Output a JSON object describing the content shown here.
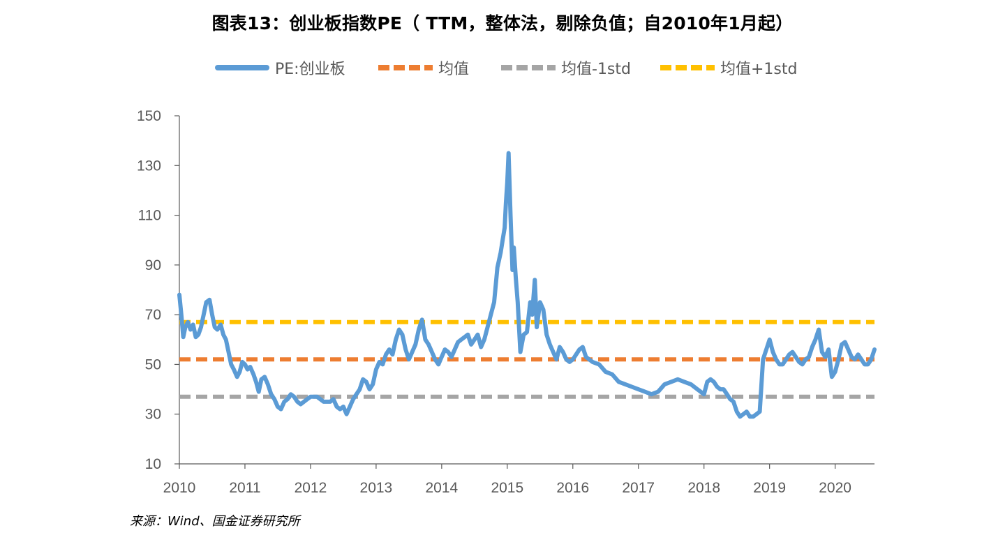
{
  "title": "图表13：创业板指数PE（ TTM，整体法，剔除负值；自2010年1月起）",
  "source": "来源：Wind、国金证券研究所",
  "colors": {
    "pe": "#5B9BD5",
    "mean": "#ED7D31",
    "minus_std": "#A5A5A5",
    "plus_std": "#FFC000",
    "axis": "#595959"
  },
  "legend": [
    {
      "key": "pe",
      "label": "PE:创业板",
      "style": "solid",
      "color": "#5B9BD5"
    },
    {
      "key": "mean",
      "label": "均值",
      "style": "dashed",
      "color": "#ED7D31"
    },
    {
      "key": "minus_std",
      "label": "均值-1std",
      "style": "dashed",
      "color": "#A5A5A5"
    },
    {
      "key": "plus_std",
      "label": "均值+1std",
      "style": "dashed",
      "color": "#FFC000"
    }
  ],
  "chart_data": {
    "type": "line",
    "title": "图表13：创业板指数PE（ TTM，整体法，剔除负值；自2010年1月起）",
    "xlabel": "",
    "ylabel": "",
    "xlim": [
      2010,
      2020.6
    ],
    "ylim": [
      10,
      150
    ],
    "yticks": [
      10,
      30,
      50,
      70,
      90,
      110,
      130,
      150
    ],
    "xticks": [
      2010,
      2011,
      2012,
      2013,
      2014,
      2015,
      2016,
      2017,
      2018,
      2019,
      2020
    ],
    "grid": false,
    "legend_position": "top",
    "series": [
      {
        "name": "PE:创业板",
        "style": "solid",
        "x": [
          2010.0,
          2010.03,
          2010.06,
          2010.09,
          2010.13,
          2010.17,
          2010.21,
          2010.25,
          2010.29,
          2010.33,
          2010.37,
          2010.41,
          2010.46,
          2010.5,
          2010.54,
          2010.58,
          2010.63,
          2010.67,
          2010.71,
          2010.75,
          2010.79,
          2010.83,
          2010.88,
          2010.92,
          2010.96,
          2011.0,
          2011.04,
          2011.08,
          2011.13,
          2011.17,
          2011.21,
          2011.25,
          2011.3,
          2011.35,
          2011.4,
          2011.45,
          2011.5,
          2011.55,
          2011.6,
          2011.65,
          2011.7,
          2011.75,
          2011.8,
          2011.85,
          2011.9,
          2011.95,
          2012.0,
          2012.1,
          2012.2,
          2012.3,
          2012.35,
          2012.4,
          2012.45,
          2012.5,
          2012.55,
          2012.6,
          2012.65,
          2012.7,
          2012.75,
          2012.8,
          2012.85,
          2012.9,
          2012.95,
          2013.0,
          2013.05,
          2013.1,
          2013.15,
          2013.2,
          2013.25,
          2013.3,
          2013.35,
          2013.4,
          2013.45,
          2013.5,
          2013.55,
          2013.6,
          2013.65,
          2013.7,
          2013.75,
          2013.8,
          2013.85,
          2013.9,
          2013.95,
          2014.0,
          2014.05,
          2014.1,
          2014.15,
          2014.2,
          2014.25,
          2014.3,
          2014.35,
          2014.4,
          2014.45,
          2014.5,
          2014.55,
          2014.6,
          2014.65,
          2014.7,
          2014.75,
          2014.8,
          2014.85,
          2014.9,
          2014.93,
          2014.96,
          2014.98,
          2015.0,
          2015.02,
          2015.05,
          2015.08,
          2015.1,
          2015.13,
          2015.16,
          2015.2,
          2015.25,
          2015.3,
          2015.35,
          2015.38,
          2015.42,
          2015.45,
          2015.5,
          2015.55,
          2015.6,
          2015.65,
          2015.7,
          2015.75,
          2015.8,
          2015.85,
          2015.9,
          2015.95,
          2016.0,
          2016.05,
          2016.1,
          2016.15,
          2016.2,
          2016.3,
          2016.4,
          2016.5,
          2016.6,
          2016.7,
          2016.8,
          2016.9,
          2017.0,
          2017.1,
          2017.2,
          2017.3,
          2017.4,
          2017.5,
          2017.6,
          2017.7,
          2017.8,
          2017.9,
          2018.0,
          2018.05,
          2018.1,
          2018.15,
          2018.2,
          2018.25,
          2018.3,
          2018.35,
          2018.4,
          2018.45,
          2018.5,
          2018.55,
          2018.6,
          2018.65,
          2018.7,
          2018.75,
          2018.8,
          2018.85,
          2018.9,
          2018.95,
          2019.0,
          2019.05,
          2019.1,
          2019.15,
          2019.2,
          2019.25,
          2019.3,
          2019.35,
          2019.4,
          2019.45,
          2019.5,
          2019.55,
          2019.6,
          2019.65,
          2019.7,
          2019.75,
          2019.8,
          2019.85,
          2019.9,
          2019.95,
          2020.0,
          2020.05,
          2020.1,
          2020.15,
          2020.2,
          2020.25,
          2020.3,
          2020.35,
          2020.4,
          2020.45,
          2020.5,
          2020.55,
          2020.6
        ],
        "y": [
          78,
          70,
          61,
          65,
          67,
          64,
          66,
          61,
          62,
          65,
          70,
          75,
          76,
          70,
          65,
          64,
          66,
          62,
          60,
          55,
          50,
          48,
          45,
          47,
          51,
          50,
          48,
          49,
          46,
          43,
          39,
          44,
          45,
          42,
          38,
          36,
          33,
          32,
          35,
          36,
          38,
          37,
          35,
          34,
          35,
          36,
          37,
          37,
          35,
          35,
          36,
          33,
          32,
          33,
          30,
          33,
          36,
          38,
          40,
          44,
          43,
          40,
          42,
          48,
          51,
          50,
          54,
          56,
          54,
          60,
          64,
          62,
          56,
          52,
          55,
          58,
          64,
          68,
          60,
          58,
          55,
          52,
          50,
          53,
          56,
          55,
          53,
          56,
          59,
          60,
          61,
          62,
          58,
          60,
          62,
          57,
          60,
          65,
          70,
          75,
          89,
          95,
          100,
          105,
          115,
          123,
          135,
          110,
          88,
          97,
          85,
          75,
          55,
          62,
          63,
          75,
          70,
          84,
          65,
          75,
          72,
          62,
          58,
          55,
          52,
          57,
          55,
          52,
          51,
          52,
          54,
          56,
          57,
          53,
          51,
          50,
          47,
          46,
          43,
          42,
          41,
          40,
          39,
          38,
          39,
          42,
          43,
          44,
          43,
          42,
          40,
          38,
          43,
          44,
          43,
          41,
          40,
          40,
          38,
          36,
          35,
          31,
          29,
          30,
          31,
          29,
          29,
          30,
          31,
          52,
          56,
          60,
          55,
          52,
          50,
          50,
          52,
          54,
          55,
          53,
          51,
          50,
          52,
          53,
          57,
          60,
          64,
          55,
          53,
          56,
          45,
          47,
          52,
          58,
          59,
          56,
          53,
          52,
          54,
          52,
          50,
          50,
          52,
          56
        ],
        "color": "#5B9BD5"
      },
      {
        "name": "均值",
        "style": "dashed",
        "x": [
          2010,
          2020.6
        ],
        "y": [
          52,
          52
        ],
        "color": "#ED7D31"
      },
      {
        "name": "均值-1std",
        "style": "dashed",
        "x": [
          2010,
          2020.6
        ],
        "y": [
          37,
          37
        ],
        "color": "#A5A5A5"
      },
      {
        "name": "均值+1std",
        "style": "dashed",
        "x": [
          2010,
          2020.6
        ],
        "y": [
          67,
          67
        ],
        "color": "#FFC000"
      }
    ]
  }
}
